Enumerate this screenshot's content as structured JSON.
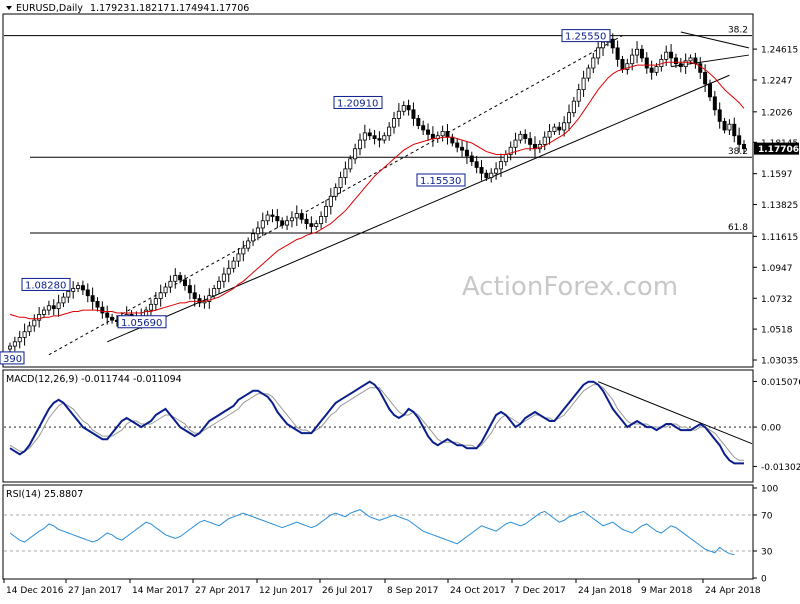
{
  "chart_data": [
    {
      "type": "candlestick",
      "title": "EURUSD,Daily",
      "ohlc": [
        "1.17923",
        "1.18217",
        "1.17494",
        "1.17706"
      ],
      "last_price": "1.17706",
      "watermark": "ActionForex.com",
      "yticks": [
        1.24615,
        1.2247,
        1.2026,
        1.18145,
        1.1597,
        1.13825,
        1.11615,
        1.0947,
        1.0732,
        1.0518,
        1.03035
      ],
      "ylim": [
        1.0255,
        1.2705
      ],
      "xtick_labels": [
        "14 Dec 2016",
        "27 Jan 2017",
        "14 Mar 2017",
        "27 Apr 2017",
        "12 Jun 2017",
        "26 Jul 2017",
        "8 Sep 2017",
        "24 Oct 2017",
        "7 Dec 2017",
        "24 Jan 2018",
        "9 Mar 2018",
        "24 Apr 2018"
      ],
      "price_labels": [
        "1.25550",
        "1.20910",
        "1.15530",
        "1.08280",
        "1.05690",
        "390"
      ],
      "fib_levels": [
        {
          "label": "38.2",
          "value": 1.2555
        },
        {
          "label": "38.2",
          "value": 1.1711
        },
        {
          "label": "61.8",
          "value": 1.1185
        }
      ],
      "close_series": [
        1.04,
        1.043,
        1.046,
        1.05,
        1.054,
        1.058,
        1.062,
        1.065,
        1.068,
        1.066,
        1.07,
        1.074,
        1.078,
        1.08,
        1.082,
        1.079,
        1.075,
        1.071,
        1.067,
        1.063,
        1.06,
        1.058,
        1.057,
        1.059,
        1.062,
        1.06,
        1.057,
        1.061,
        1.065,
        1.069,
        1.073,
        1.077,
        1.081,
        1.085,
        1.089,
        1.086,
        1.082,
        1.077,
        1.073,
        1.07,
        1.071,
        1.075,
        1.08,
        1.085,
        1.09,
        1.094,
        1.099,
        1.104,
        1.108,
        1.113,
        1.118,
        1.122,
        1.127,
        1.131,
        1.13,
        1.127,
        1.124,
        1.127,
        1.129,
        1.132,
        1.128,
        1.125,
        1.123,
        1.125,
        1.13,
        1.137,
        1.144,
        1.15,
        1.157,
        1.163,
        1.17,
        1.177,
        1.183,
        1.188,
        1.186,
        1.184,
        1.183,
        1.186,
        1.192,
        1.198,
        1.203,
        1.207,
        1.204,
        1.198,
        1.193,
        1.19,
        1.187,
        1.184,
        1.186,
        1.189,
        1.185,
        1.181,
        1.178,
        1.176,
        1.172,
        1.168,
        1.164,
        1.16,
        1.157,
        1.16,
        1.163,
        1.168,
        1.173,
        1.178,
        1.183,
        1.187,
        1.184,
        1.18,
        1.177,
        1.18,
        1.185,
        1.189,
        1.192,
        1.19,
        1.195,
        1.202,
        1.21,
        1.218,
        1.226,
        1.233,
        1.24,
        1.247,
        1.251,
        1.253,
        1.247,
        1.239,
        1.232,
        1.236,
        1.242,
        1.246,
        1.24,
        1.233,
        1.23,
        1.234,
        1.239,
        1.244,
        1.24,
        1.236,
        1.234,
        1.238,
        1.24,
        1.236,
        1.23,
        1.222,
        1.213,
        1.204,
        1.196,
        1.19,
        1.194,
        1.186,
        1.18,
        1.177
      ],
      "sma_series": [
        1.062,
        1.061,
        1.06,
        1.06,
        1.059,
        1.059,
        1.059,
        1.06,
        1.06,
        1.061,
        1.061,
        1.062,
        1.063,
        1.064,
        1.064,
        1.065,
        1.065,
        1.065,
        1.065,
        1.064,
        1.064,
        1.064,
        1.063,
        1.063,
        1.063,
        1.063,
        1.063,
        1.063,
        1.064,
        1.064,
        1.065,
        1.066,
        1.067,
        1.068,
        1.069,
        1.07,
        1.07,
        1.071,
        1.071,
        1.071,
        1.071,
        1.072,
        1.073,
        1.074,
        1.076,
        1.078,
        1.08,
        1.083,
        1.085,
        1.088,
        1.091,
        1.094,
        1.097,
        1.1,
        1.103,
        1.106,
        1.108,
        1.11,
        1.112,
        1.114,
        1.115,
        1.117,
        1.118,
        1.119,
        1.121,
        1.123,
        1.125,
        1.128,
        1.131,
        1.134,
        1.138,
        1.142,
        1.146,
        1.15,
        1.154,
        1.158,
        1.161,
        1.164,
        1.167,
        1.17,
        1.173,
        1.176,
        1.178,
        1.18,
        1.181,
        1.182,
        1.183,
        1.184,
        1.184,
        1.185,
        1.185,
        1.185,
        1.184,
        1.183,
        1.182,
        1.181,
        1.179,
        1.177,
        1.175,
        1.174,
        1.173,
        1.173,
        1.173,
        1.174,
        1.175,
        1.176,
        1.177,
        1.177,
        1.177,
        1.178,
        1.179,
        1.181,
        1.183,
        1.185,
        1.187,
        1.19,
        1.194,
        1.198,
        1.203,
        1.208,
        1.213,
        1.218,
        1.222,
        1.226,
        1.229,
        1.231,
        1.232,
        1.233,
        1.234,
        1.235,
        1.235,
        1.235,
        1.235,
        1.235,
        1.236,
        1.237,
        1.237,
        1.237,
        1.237,
        1.237,
        1.237,
        1.236,
        1.234,
        1.232,
        1.229,
        1.226,
        1.222,
        1.218,
        1.215,
        1.212,
        1.209,
        1.205
      ],
      "trendlines": [
        {
          "from": [
            8,
            1.034
          ],
          "to": [
            126,
            1.2555
          ]
        },
        {
          "from": [
            20,
            1.043
          ],
          "to": [
            148,
            1.228
          ]
        },
        {
          "from": [
            136,
            1.234
          ],
          "to": [
            152,
            1.242
          ]
        },
        {
          "from": [
            138,
            1.258
          ],
          "to": [
            152,
            1.247
          ]
        }
      ]
    },
    {
      "type": "line",
      "title": "MACD(12,26,9) -0.011744 -0.011094",
      "yticks": [
        "0.015076",
        "0.00",
        "-0.013021"
      ],
      "yvalues": [
        0.015076,
        0.0,
        -0.013021
      ],
      "ylim": [
        -0.0175,
        0.0182
      ],
      "main_series": [
        -0.007,
        -0.008,
        -0.009,
        -0.008,
        -0.006,
        -0.003,
        0.0,
        0.003,
        0.006,
        0.008,
        0.009,
        0.008,
        0.006,
        0.004,
        0.002,
        0.0,
        -0.001,
        -0.002,
        -0.003,
        -0.004,
        -0.004,
        -0.002,
        0.0,
        0.002,
        0.003,
        0.002,
        0.001,
        0.0,
        0.001,
        0.002,
        0.004,
        0.005,
        0.006,
        0.004,
        0.002,
        0.0,
        -0.001,
        -0.002,
        -0.003,
        -0.002,
        0.0,
        0.002,
        0.003,
        0.004,
        0.005,
        0.006,
        0.007,
        0.009,
        0.01,
        0.011,
        0.012,
        0.012,
        0.011,
        0.01,
        0.008,
        0.005,
        0.003,
        0.001,
        0.0,
        -0.001,
        -0.002,
        -0.002,
        -0.002,
        0.0,
        0.002,
        0.004,
        0.006,
        0.008,
        0.009,
        0.01,
        0.011,
        0.012,
        0.013,
        0.014,
        0.015,
        0.014,
        0.012,
        0.009,
        0.006,
        0.004,
        0.003,
        0.004,
        0.006,
        0.005,
        0.003,
        0.0,
        -0.003,
        -0.005,
        -0.006,
        -0.005,
        -0.004,
        -0.005,
        -0.006,
        -0.006,
        -0.007,
        -0.007,
        -0.007,
        -0.005,
        -0.002,
        0.001,
        0.004,
        0.005,
        0.004,
        0.002,
        0.0,
        0.001,
        0.003,
        0.004,
        0.005,
        0.004,
        0.003,
        0.002,
        0.002,
        0.004,
        0.006,
        0.008,
        0.01,
        0.012,
        0.014,
        0.015,
        0.015,
        0.014,
        0.012,
        0.009,
        0.006,
        0.004,
        0.002,
        0.0,
        0.001,
        0.002,
        0.001,
        0.0,
        0.0,
        -0.001,
        0.0,
        0.001,
        0.001,
        0.0,
        -0.001,
        -0.001,
        -0.001,
        0.0,
        0.001,
        0.0,
        -0.002,
        -0.004,
        -0.006,
        -0.009,
        -0.011,
        -0.012,
        -0.012,
        -0.012
      ],
      "signal_series": [
        -0.006,
        -0.007,
        -0.008,
        -0.008,
        -0.007,
        -0.005,
        -0.003,
        0.0,
        0.003,
        0.005,
        0.007,
        0.008,
        0.007,
        0.006,
        0.004,
        0.002,
        0.001,
        -0.001,
        -0.002,
        -0.003,
        -0.003,
        -0.003,
        -0.002,
        -0.001,
        0.001,
        0.002,
        0.002,
        0.001,
        0.001,
        0.001,
        0.002,
        0.003,
        0.004,
        0.004,
        0.003,
        0.002,
        0.001,
        -0.001,
        -0.002,
        -0.002,
        -0.001,
        0.0,
        0.001,
        0.002,
        0.003,
        0.004,
        0.005,
        0.006,
        0.008,
        0.009,
        0.01,
        0.011,
        0.011,
        0.011,
        0.01,
        0.008,
        0.006,
        0.004,
        0.002,
        0.0,
        -0.001,
        -0.001,
        -0.002,
        -0.001,
        0.0,
        0.002,
        0.004,
        0.005,
        0.007,
        0.008,
        0.009,
        0.01,
        0.011,
        0.012,
        0.013,
        0.013,
        0.013,
        0.011,
        0.009,
        0.007,
        0.005,
        0.004,
        0.004,
        0.005,
        0.004,
        0.002,
        0.0,
        -0.002,
        -0.004,
        -0.005,
        -0.005,
        -0.005,
        -0.005,
        -0.006,
        -0.006,
        -0.006,
        -0.007,
        -0.006,
        -0.004,
        -0.002,
        0.001,
        0.003,
        0.004,
        0.003,
        0.002,
        0.001,
        0.002,
        0.003,
        0.004,
        0.004,
        0.003,
        0.003,
        0.002,
        0.003,
        0.004,
        0.006,
        0.008,
        0.01,
        0.012,
        0.013,
        0.014,
        0.014,
        0.013,
        0.011,
        0.009,
        0.006,
        0.004,
        0.002,
        0.001,
        0.001,
        0.001,
        0.001,
        0.0,
        0.0,
        0.0,
        0.0,
        0.001,
        0.001,
        0.0,
        0.0,
        -0.001,
        -0.001,
        0.0,
        0.0,
        -0.001,
        -0.002,
        -0.004,
        -0.006,
        -0.008,
        -0.01,
        -0.011,
        -0.011
      ]
    },
    {
      "type": "line",
      "title": "RSI(14) 25.8807",
      "yticks": [
        100,
        70,
        30,
        0
      ],
      "ylim": [
        0,
        100
      ],
      "series": [
        50,
        46,
        42,
        40,
        44,
        48,
        52,
        55,
        60,
        58,
        54,
        52,
        50,
        48,
        46,
        44,
        42,
        40,
        42,
        46,
        50,
        48,
        44,
        42,
        46,
        50,
        54,
        58,
        62,
        60,
        56,
        52,
        48,
        46,
        44,
        46,
        50,
        54,
        58,
        62,
        64,
        62,
        60,
        58,
        62,
        66,
        68,
        70,
        72,
        70,
        68,
        66,
        64,
        62,
        60,
        58,
        56,
        58,
        60,
        62,
        60,
        58,
        56,
        58,
        62,
        66,
        70,
        72,
        70,
        68,
        72,
        74,
        76,
        72,
        68,
        66,
        64,
        66,
        68,
        70,
        68,
        66,
        64,
        60,
        56,
        52,
        50,
        48,
        46,
        44,
        42,
        40,
        38,
        42,
        46,
        50,
        54,
        58,
        56,
        54,
        52,
        56,
        60,
        62,
        60,
        58,
        60,
        64,
        68,
        72,
        74,
        70,
        66,
        62,
        64,
        68,
        70,
        72,
        74,
        70,
        66,
        62,
        58,
        60,
        62,
        58,
        54,
        52,
        50,
        54,
        58,
        60,
        56,
        52,
        50,
        54,
        58,
        56,
        52,
        48,
        44,
        40,
        36,
        32,
        30,
        28,
        34,
        30,
        27,
        26
      ]
    }
  ]
}
